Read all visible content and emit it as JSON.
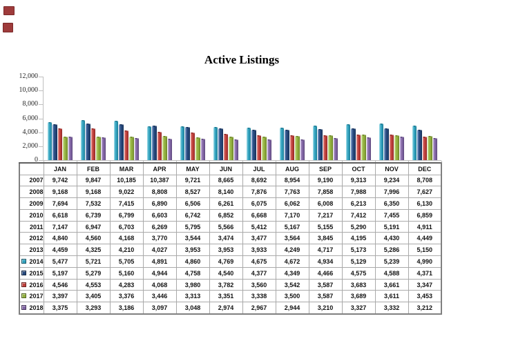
{
  "title": "Active Listings",
  "chart": {
    "y_axis": {
      "labels": [
        "12,000",
        "10,000",
        "8,000",
        "6,000",
        "4,000",
        "2,000",
        "0"
      ],
      "max": 12000,
      "min": 0,
      "step": 2000
    }
  },
  "chart_data": {
    "type": "bar",
    "title": "Active Listings",
    "categories": [
      "JAN",
      "FEB",
      "MAR",
      "APR",
      "MAY",
      "JUN",
      "JUL",
      "AUG",
      "SEP",
      "OCT",
      "NOV",
      "DEC"
    ],
    "ylim": [
      0,
      12000
    ],
    "grid": false,
    "legend_position": "table-row-keys",
    "series": [
      {
        "name": "2014",
        "colors": {
          "light": "#8AD1E0",
          "main": "#31A1BD",
          "dark": "#19758D"
        },
        "values": [
          5477,
          5721,
          5705,
          4891,
          4860,
          4769,
          4675,
          4672,
          4934,
          5129,
          5239,
          4990
        ]
      },
      {
        "name": "2015",
        "colors": {
          "light": "#6E8FBF",
          "main": "#27497D",
          "dark": "#152F56"
        },
        "values": [
          5197,
          5279,
          5160,
          4944,
          4758,
          4540,
          4377,
          4349,
          4466,
          4575,
          4588,
          4371
        ]
      },
      {
        "name": "2016",
        "colors": {
          "light": "#DD827E",
          "main": "#BF3F3B",
          "dark": "#8A2523"
        },
        "values": [
          4546,
          4553,
          4283,
          4068,
          3980,
          3782,
          3560,
          3542,
          3587,
          3683,
          3661,
          3347
        ]
      },
      {
        "name": "2017",
        "colors": {
          "light": "#C3D987",
          "main": "#93B13F",
          "dark": "#677F25"
        },
        "values": [
          3397,
          3405,
          3376,
          3446,
          3313,
          3351,
          3338,
          3500,
          3587,
          3689,
          3611,
          3453
        ]
      },
      {
        "name": "2018",
        "colors": {
          "light": "#B5A0CE",
          "main": "#8165A4",
          "dark": "#594479"
        },
        "values": [
          3375,
          3293,
          3186,
          3097,
          3048,
          2974,
          2967,
          2944,
          3210,
          3327,
          3332,
          3212
        ]
      }
    ]
  },
  "table": {
    "columns": [
      "",
      "JAN",
      "FEB",
      "MAR",
      "APR",
      "MAY",
      "JUN",
      "JUL",
      "AUG",
      "SEP",
      "OCT",
      "NOV",
      "DEC"
    ],
    "rows": [
      {
        "year": "2007",
        "key_color": null,
        "values": [
          "9,742",
          "9,847",
          "10,185",
          "10,387",
          "9,721",
          "8,665",
          "8,692",
          "8,954",
          "9,190",
          "9,313",
          "9,234",
          "8,708"
        ]
      },
      {
        "year": "2008",
        "key_color": null,
        "values": [
          "9,168",
          "9,168",
          "9,022",
          "8,808",
          "8,527",
          "8,140",
          "7,876",
          "7,763",
          "7,858",
          "7,988",
          "7,996",
          "7,627"
        ]
      },
      {
        "year": "2009",
        "key_color": null,
        "values": [
          "7,694",
          "7,532",
          "7,415",
          "6,890",
          "6,506",
          "6,261",
          "6,075",
          "6,062",
          "6,008",
          "6,213",
          "6,350",
          "6,130"
        ]
      },
      {
        "year": "2010",
        "key_color": null,
        "values": [
          "6,618",
          "6,739",
          "6,799",
          "6,603",
          "6,742",
          "6,852",
          "6,668",
          "7,170",
          "7,217",
          "7,412",
          "7,455",
          "6,859"
        ]
      },
      {
        "year": "2011",
        "key_color": null,
        "values": [
          "7,147",
          "6,947",
          "6,703",
          "6,269",
          "5,795",
          "5,566",
          "5,412",
          "5,167",
          "5,155",
          "5,290",
          "5,191",
          "4,911"
        ]
      },
      {
        "year": "2012",
        "key_color": null,
        "values": [
          "4,840",
          "4,560",
          "4,168",
          "3,770",
          "3,544",
          "3,474",
          "3,477",
          "3,564",
          "3,845",
          "4,195",
          "4,430",
          "4,449"
        ]
      },
      {
        "year": "2013",
        "key_color": null,
        "values": [
          "4,459",
          "4,325",
          "4,210",
          "4,027",
          "3,953",
          "3,953",
          "3,933",
          "4,249",
          "4,717",
          "5,173",
          "5,286",
          "5,150"
        ]
      },
      {
        "year": "2014",
        "key_color": "#31A1BD",
        "values": [
          "5,477",
          "5,721",
          "5,705",
          "4,891",
          "4,860",
          "4,769",
          "4,675",
          "4,672",
          "4,934",
          "5,129",
          "5,239",
          "4,990"
        ]
      },
      {
        "year": "2015",
        "key_color": "#27497D",
        "values": [
          "5,197",
          "5,279",
          "5,160",
          "4,944",
          "4,758",
          "4,540",
          "4,377",
          "4,349",
          "4,466",
          "4,575",
          "4,588",
          "4,371"
        ]
      },
      {
        "year": "2016",
        "key_color": "#BF3F3B",
        "values": [
          "4,546",
          "4,553",
          "4,283",
          "4,068",
          "3,980",
          "3,782",
          "3,560",
          "3,542",
          "3,587",
          "3,683",
          "3,661",
          "3,347"
        ]
      },
      {
        "year": "2017",
        "key_color": "#93B13F",
        "values": [
          "3,397",
          "3,405",
          "3,376",
          "3,446",
          "3,313",
          "3,351",
          "3,338",
          "3,500",
          "3,587",
          "3,689",
          "3,611",
          "3,453"
        ]
      },
      {
        "year": "2018",
        "key_color": "#8165A4",
        "values": [
          "3,375",
          "3,293",
          "3,186",
          "3,097",
          "3,048",
          "2,974",
          "2,967",
          "2,944",
          "3,210",
          "3,327",
          "3,332",
          "3,212"
        ]
      }
    ]
  },
  "artifacts": {
    "broken_image_icon_count": 2
  }
}
